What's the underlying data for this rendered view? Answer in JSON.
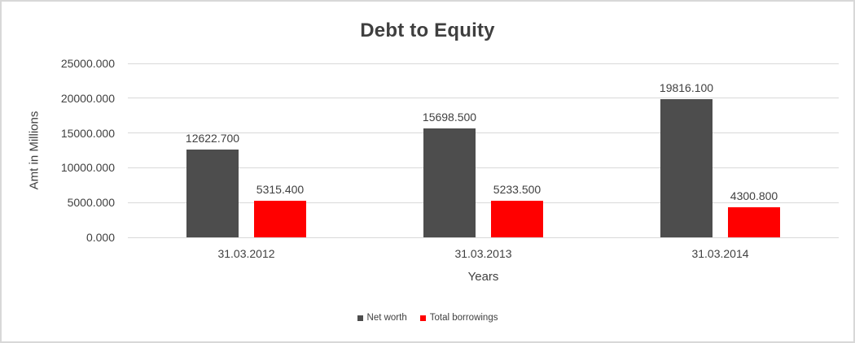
{
  "window": {
    "background_color": "#FFFFFF",
    "border_color": "#D8D8D8"
  },
  "chart_data": {
    "type": "bar",
    "title": "Debt to Equity",
    "xlabel": "Years",
    "ylabel": "Amt in Millions",
    "categories": [
      "31.03.2012",
      "31.03.2013",
      "31.03.2014"
    ],
    "series": [
      {
        "name": "Net worth",
        "color": "#4D4D4D",
        "values": [
          12622.7,
          15698.5,
          19816.1
        ],
        "data_labels": [
          "12622.700",
          "15698.500",
          "19816.100"
        ]
      },
      {
        "name": "Total borrowings",
        "color": "#FF0000",
        "values": [
          5315.4,
          5233.5,
          4300.8
        ],
        "data_labels": [
          "5315.400",
          "5233.500",
          "4300.800"
        ]
      }
    ],
    "ylim": [
      0,
      25000
    ],
    "yticks": [
      0,
      5000,
      10000,
      15000,
      20000,
      25000
    ],
    "ytick_labels": [
      "0.000",
      "5000.000",
      "10000.000",
      "15000.000",
      "20000.000",
      "25000.000"
    ],
    "grid": true,
    "gridline_color": "#D9D9D9",
    "text_color": "#404040",
    "legend_position": "bottom"
  }
}
